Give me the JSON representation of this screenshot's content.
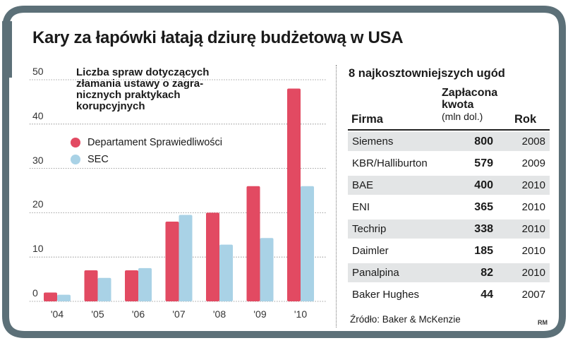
{
  "title": "Kary za łapówki łatają dziurę budżetową w USA",
  "colors": {
    "frame": "#5c7078",
    "doj": "#e24a62",
    "sec": "#a9d2e6",
    "row_shade": "#e3e5e6"
  },
  "chart_data": {
    "type": "bar",
    "title": "Liczba spraw dotyczących złamania ustawy o zagranicznych praktykach korupcyjnych",
    "title_lines": [
      "Liczba spraw dotyczących",
      "złamania ustawy o zagra-",
      "nicznych praktykach",
      "korupcyjnych"
    ],
    "categories": [
      "'04",
      "'05",
      "'06",
      "'07",
      "'08",
      "'09",
      "'10"
    ],
    "series": [
      {
        "name": "Departament Sprawiedliwości",
        "values": [
          2,
          7,
          7,
          18,
          20,
          26,
          48
        ]
      },
      {
        "name": "SEC",
        "values": [
          1.5,
          5.3,
          7.5,
          19.5,
          12.8,
          14.3,
          26
        ]
      }
    ],
    "ylim": [
      0,
      50
    ],
    "yticks": [
      0,
      10,
      20,
      30,
      40,
      50
    ],
    "xlabel": "",
    "ylabel": "",
    "grid": true,
    "legend_position": "top-left"
  },
  "table": {
    "title": "8 najkosztowniejszych ugód",
    "headers": {
      "firma": "Firma",
      "amount_line1": "Zapłacona",
      "amount_line2": "kwota",
      "amount_unit": "(mln dol.)",
      "year": "Rok"
    },
    "rows": [
      {
        "firma": "Siemens",
        "amount": "800",
        "year": "2008"
      },
      {
        "firma": "KBR/Halliburton",
        "amount": "579",
        "year": "2009"
      },
      {
        "firma": "BAE",
        "amount": "400",
        "year": "2010"
      },
      {
        "firma": "ENI",
        "amount": "365",
        "year": "2010"
      },
      {
        "firma": "Techrip",
        "amount": "338",
        "year": "2010"
      },
      {
        "firma": "Daimler",
        "amount": "185",
        "year": "2010"
      },
      {
        "firma": "Panalpina",
        "amount": "82",
        "year": "2010"
      },
      {
        "firma": "Baker Hughes",
        "amount": "44",
        "year": "2007"
      }
    ]
  },
  "source": "Źródło: Baker & McKenzie",
  "credit": "RM"
}
